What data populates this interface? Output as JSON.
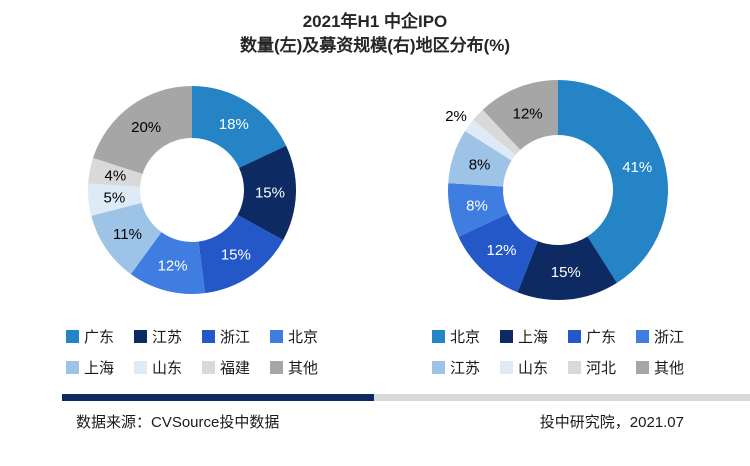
{
  "title": {
    "line1": "2021年H1 中企IPO",
    "line2": "数量(左)及募资规模(右)地区分布(%)"
  },
  "chart_data": [
    {
      "type": "pie",
      "donut": true,
      "title": "中企IPO数量地区分布(%)",
      "unit": "%",
      "start_angle_deg": -90,
      "direction": "clockwise",
      "legend_position": "bottom",
      "slices": [
        {
          "label": "广东",
          "value": 18,
          "color": "#2484C6",
          "text_color": "#FFFFFF"
        },
        {
          "label": "江苏",
          "value": 15,
          "color": "#0E2A63",
          "text_color": "#FFFFFF"
        },
        {
          "label": "浙江",
          "value": 15,
          "color": "#2458C9",
          "text_color": "#FFFFFF"
        },
        {
          "label": "北京",
          "value": 12,
          "color": "#3F7DE0",
          "text_color": "#FFFFFF"
        },
        {
          "label": "上海",
          "value": 11,
          "color": "#9DC3E6",
          "text_color": "#000000"
        },
        {
          "label": "山东",
          "value": 5,
          "color": "#DEEAF6",
          "text_color": "#000000"
        },
        {
          "label": "福建",
          "value": 4,
          "color": "#D9D9D9",
          "text_color": "#000000"
        },
        {
          "label": "其他",
          "value": 20,
          "color": "#A6A6A6",
          "text_color": "#000000"
        }
      ]
    },
    {
      "type": "pie",
      "donut": true,
      "title": "中企IPO募资规模地区分布(%)",
      "unit": "%",
      "start_angle_deg": -90,
      "direction": "clockwise",
      "legend_position": "bottom",
      "slices": [
        {
          "label": "北京",
          "value": 41,
          "color": "#2484C6",
          "text_color": "#FFFFFF"
        },
        {
          "label": "上海",
          "value": 15,
          "color": "#0E2A63",
          "text_color": "#FFFFFF"
        },
        {
          "label": "广东",
          "value": 12,
          "color": "#2458C9",
          "text_color": "#FFFFFF"
        },
        {
          "label": "浙江",
          "value": 8,
          "color": "#3F7DE0",
          "text_color": "#FFFFFF"
        },
        {
          "label": "江苏",
          "value": 8,
          "color": "#9DC3E6",
          "text_color": "#000000"
        },
        {
          "label": "山东",
          "value": 2,
          "color": "#DEEAF6",
          "text_color": "#000000"
        },
        {
          "label": "河北",
          "value": 2,
          "color": "#D9D9D9",
          "text_color": "#000000",
          "show_label": false
        },
        {
          "label": "其他",
          "value": 12,
          "color": "#A6A6A6",
          "text_color": "#000000"
        }
      ]
    }
  ],
  "footer": {
    "source": "数据来源：CVSource投中数据",
    "credit": "投中研究院，2021.07",
    "bar_left_color": "#0E2A63",
    "bar_right_color": "#D9D9D9"
  }
}
